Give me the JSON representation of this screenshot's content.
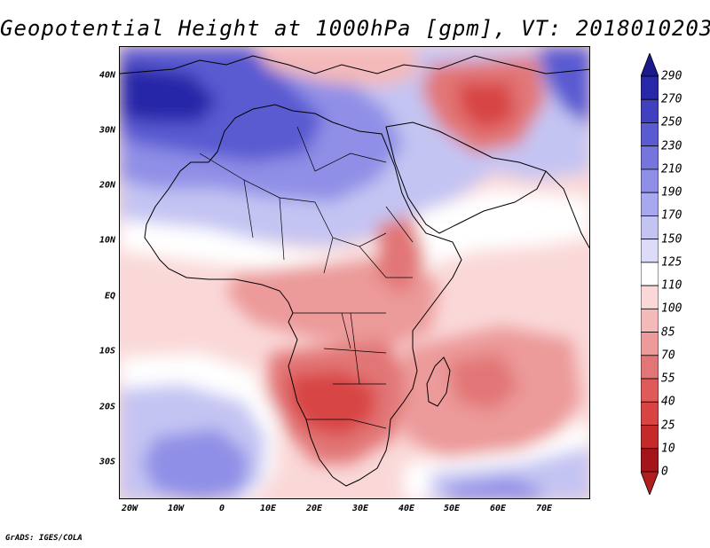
{
  "title": "Geopotential Height at 1000hPa [gpm], VT: 2018010203",
  "credit": "GrADS: IGES/COLA",
  "lat_labels": [
    "40N",
    "30N",
    "20N",
    "10N",
    "EQ",
    "10S",
    "20S",
    "30S"
  ],
  "lon_labels": [
    "20W",
    "10W",
    "0",
    "10E",
    "20E",
    "30E",
    "40E",
    "50E",
    "60E",
    "70E"
  ],
  "colorbar": {
    "levels": [
      "0",
      "10",
      "25",
      "40",
      "55",
      "70",
      "85",
      "100",
      "110",
      "125",
      "150",
      "170",
      "190",
      "210",
      "230",
      "250",
      "270",
      "290"
    ],
    "colors": [
      "#a3141b",
      "#c42a2a",
      "#d84444",
      "#e05a5a",
      "#e27676",
      "#ec9a9a",
      "#f4b9b9",
      "#fad8d8",
      "#ffffff",
      "#dcdcf8",
      "#c4c4f3",
      "#a8a8ee",
      "#8f8fe7",
      "#7575dd",
      "#5a5ad1",
      "#4141c0",
      "#2828a8"
    ],
    "under_color": "#b01e1e",
    "over_color": "#1a1a8a"
  },
  "map": {
    "lon_range": [
      -22,
      80
    ],
    "lat_range": [
      -36,
      45
    ],
    "ocean_color": "#fad8d8"
  }
}
